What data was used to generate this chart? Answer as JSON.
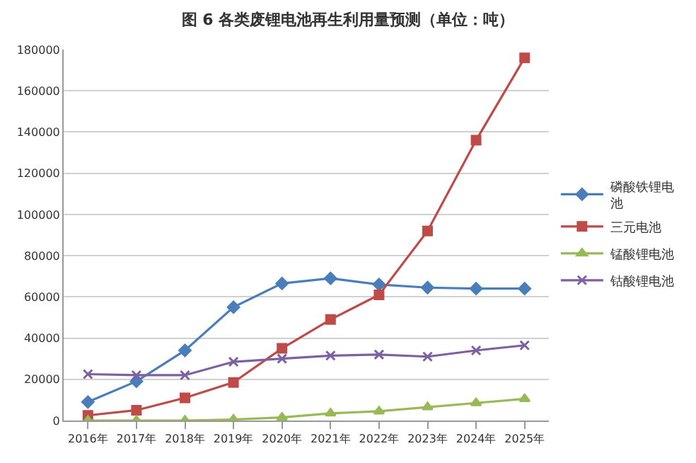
{
  "chart_data": {
    "type": "line",
    "title": "图 6 各类废锂电池再生利用量预测（单位：吨）",
    "categories": [
      "2016年",
      "2017年",
      "2018年",
      "2019年",
      "2020年",
      "2021年",
      "2022年",
      "2023年",
      "2024年",
      "2025年"
    ],
    "series": [
      {
        "name": "磷酸铁锂电池",
        "color": "#4a7ebb",
        "marker": "diamond",
        "values": [
          9000,
          19000,
          34000,
          55000,
          66500,
          69000,
          66000,
          64500,
          64000,
          64000
        ]
      },
      {
        "name": "三元电池",
        "color": "#be4b48",
        "marker": "square",
        "values": [
          2500,
          5000,
          11000,
          18500,
          35000,
          49000,
          61000,
          92000,
          136000,
          176000
        ]
      },
      {
        "name": "锰酸锂电池",
        "color": "#98b954",
        "marker": "triangle",
        "values": [
          0,
          0,
          0,
          500,
          1500,
          3500,
          4500,
          6500,
          8500,
          10500
        ]
      },
      {
        "name": "钴酸锂电池",
        "color": "#7d60a0",
        "marker": "cross",
        "values": [
          22500,
          22000,
          22000,
          28500,
          30000,
          31500,
          32000,
          31000,
          34000,
          36500
        ]
      }
    ],
    "ylim": [
      0,
      180000
    ],
    "yticks": [
      0,
      20000,
      40000,
      60000,
      80000,
      100000,
      120000,
      140000,
      160000,
      180000
    ],
    "grid": "y",
    "legend": "right",
    "line_style": "solid"
  }
}
